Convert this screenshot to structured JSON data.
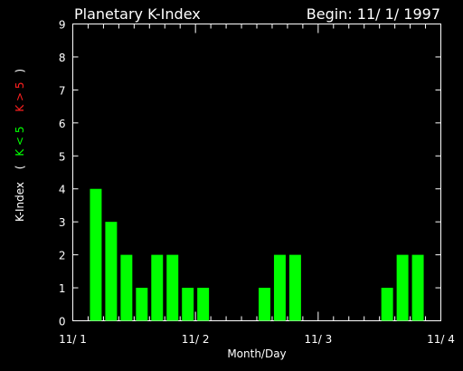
{
  "header": {
    "title": "Planetary K-Index",
    "begin": "Begin: 11/ 1/ 1997"
  },
  "chart_data": {
    "type": "bar",
    "title": "Planetary K-Index",
    "xlabel": "Month/Day",
    "ylabel": "K-Index",
    "legend": {
      "open": "(",
      "low_label": "K < 5",
      "high_label": "K > 5",
      "low_color": "#00ff00",
      "high_color": "#ff2020",
      "close": ")"
    },
    "ylim": [
      0,
      9
    ],
    "y_ticks": [
      "0",
      "1",
      "2",
      "3",
      "4",
      "5",
      "6",
      "7",
      "8",
      "9"
    ],
    "x_tick_labels": [
      "11/ 1",
      "11/ 2",
      "11/ 3",
      "11/ 4"
    ],
    "x_range_intervals": [
      0,
      24
    ],
    "interval_hours": 3,
    "bar_color_low": "#00ff00",
    "bar_color_high": "#ff2020",
    "values": [
      null,
      4,
      3,
      2,
      1,
      2,
      2,
      1,
      1,
      null,
      null,
      null,
      1,
      2,
      2,
      null,
      null,
      null,
      null,
      null,
      1,
      2,
      2,
      null
    ]
  }
}
